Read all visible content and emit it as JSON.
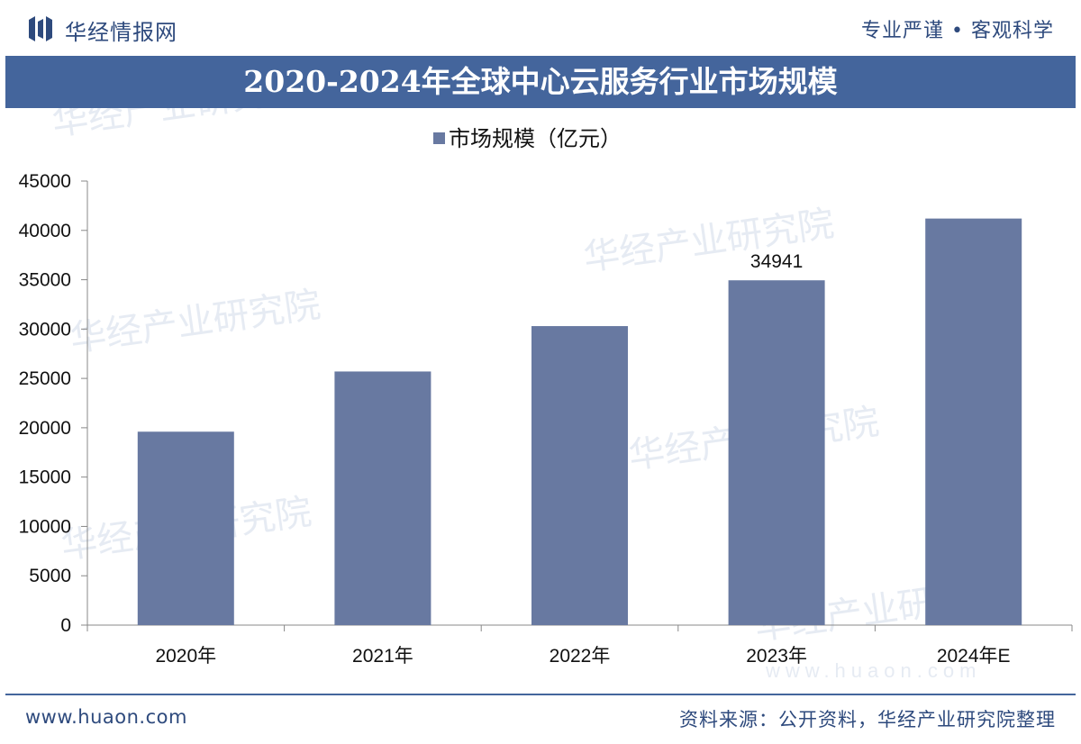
{
  "header": {
    "brand": "华经情报网",
    "slogan": "专业严谨 • 客观科学"
  },
  "footer": {
    "url": "www.huaon.com",
    "source": "资料来源：公开资料，华经产业研究院整理"
  },
  "watermark": {
    "text": "华经产业研究院",
    "url": "www.huaon.com"
  },
  "colors": {
    "bar": "#6879a1",
    "title_band": "#44659c",
    "brand": "#2e4a7d"
  },
  "chart_data": {
    "type": "bar",
    "title": "2020-2024年全球中心云服务行业市场规模",
    "categories": [
      "2020年",
      "2021年",
      "2022年",
      "2023年",
      "2024年E"
    ],
    "series": [
      {
        "name": "市场规模（亿元）",
        "values": [
          19600,
          25700,
          30300,
          34941,
          41200
        ]
      }
    ],
    "data_labels": [
      "",
      "",
      "",
      "34941",
      ""
    ],
    "ylim": [
      0,
      45000
    ],
    "yticks": [
      "0",
      "5000",
      "10000",
      "15000",
      "20000",
      "25000",
      "30000",
      "35000",
      "40000",
      "45000"
    ],
    "xlabel": "",
    "ylabel": "",
    "grid": false,
    "legend": "top-center"
  }
}
